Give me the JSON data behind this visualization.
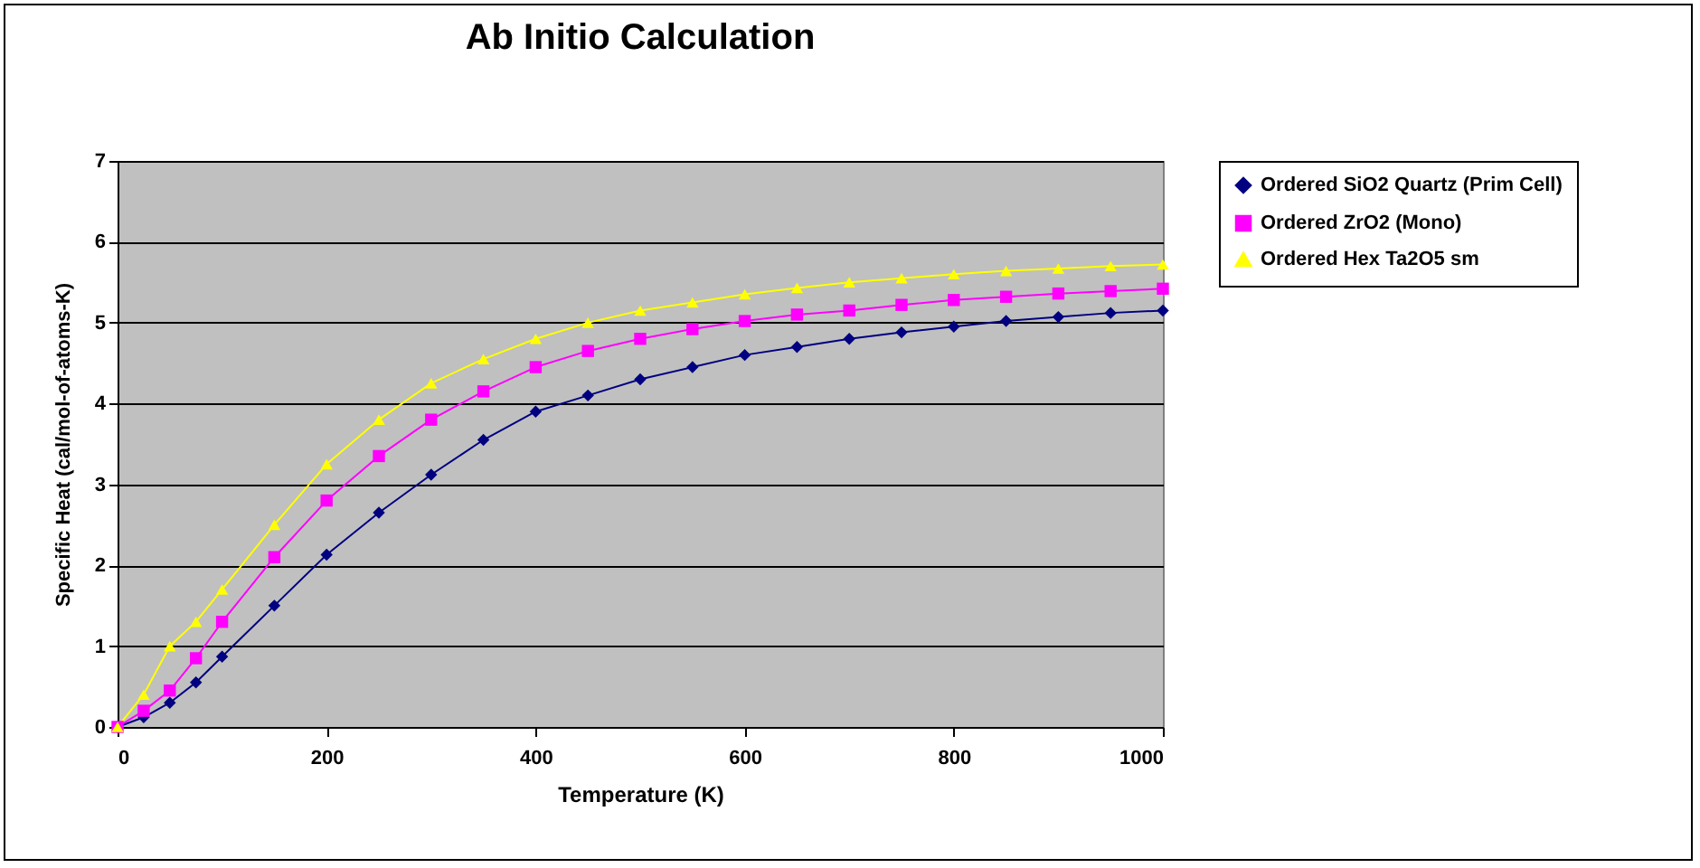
{
  "chart_data": {
    "type": "line",
    "title": "Ab Initio Calculation",
    "xlabel": "Temperature (K)",
    "ylabel": "Specific Heat (cal/mol-of-atoms-K)",
    "x": [
      0,
      25,
      50,
      75,
      100,
      150,
      200,
      250,
      300,
      350,
      400,
      450,
      500,
      550,
      600,
      650,
      700,
      750,
      800,
      850,
      900,
      950,
      1000
    ],
    "series": [
      {
        "name": "Ordered SiO2 Quartz (Prim Cell)",
        "color": "#000080",
        "marker": "diamond",
        "values": [
          0,
          0.12,
          0.3,
          0.55,
          0.87,
          1.5,
          2.13,
          2.65,
          3.12,
          3.55,
          3.9,
          4.1,
          4.3,
          4.45,
          4.6,
          4.7,
          4.8,
          4.88,
          4.95,
          5.02,
          5.07,
          5.12,
          5.15
        ]
      },
      {
        "name": "Ordered ZrO2 (Mono)",
        "color": "#ff00ff",
        "marker": "square",
        "values": [
          0,
          0.2,
          0.45,
          0.85,
          1.3,
          2.1,
          2.8,
          3.35,
          3.8,
          4.15,
          4.45,
          4.65,
          4.8,
          4.92,
          5.02,
          5.1,
          5.15,
          5.22,
          5.28,
          5.32,
          5.36,
          5.39,
          5.42
        ]
      },
      {
        "name": "Ordered Hex Ta2O5 sm",
        "color": "#ffff00",
        "marker": "triangle",
        "values": [
          0,
          0.4,
          1.0,
          1.3,
          1.7,
          2.5,
          3.25,
          3.8,
          4.25,
          4.55,
          4.8,
          5.0,
          5.15,
          5.25,
          5.35,
          5.43,
          5.5,
          5.55,
          5.6,
          5.64,
          5.67,
          5.7,
          5.72
        ]
      }
    ],
    "xlim": [
      0,
      1000
    ],
    "xticks": [
      0,
      200,
      400,
      600,
      800,
      1000
    ],
    "ylim": [
      0,
      7
    ],
    "yticks": [
      0,
      1,
      2,
      3,
      4,
      5,
      6,
      7
    ],
    "grid": "y",
    "legend": "right",
    "line_style": "solid"
  }
}
